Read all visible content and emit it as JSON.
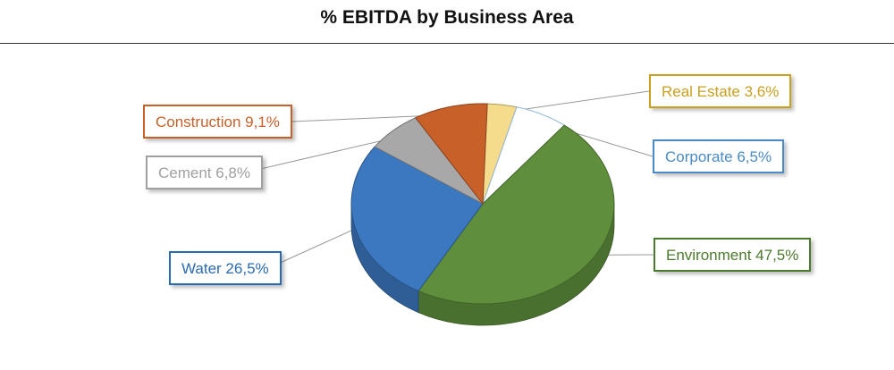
{
  "chart_data": {
    "type": "pie",
    "title": "% EBITDA by Business Area",
    "three_d": true,
    "slices": [
      {
        "name": "Real Estate",
        "value": 3.6,
        "label": "Real Estate 3,6%",
        "color": "#F5DC8C",
        "label_color": "#C9A020"
      },
      {
        "name": "Corporate",
        "value": 6.5,
        "label": "Corporate 6,5%",
        "color": "#FFFFFF",
        "label_color": "#4A8AC8"
      },
      {
        "name": "Environment",
        "value": 47.5,
        "label": "Environment 47,5%",
        "color": "#5F8F3C",
        "label_color": "#4B7A2C"
      },
      {
        "name": "Water",
        "value": 26.5,
        "label": "Water 26,5%",
        "color": "#3B78BF",
        "label_color": "#2A6AB0"
      },
      {
        "name": "Cement",
        "value": 6.8,
        "label": "Cement 6,8%",
        "color": "#A8A8A8",
        "label_color": "#A0A0A0"
      },
      {
        "name": "Construction",
        "value": 9.1,
        "label": "Construction 9,1%",
        "color": "#C8602A",
        "label_color": "#C8602A"
      }
    ]
  }
}
